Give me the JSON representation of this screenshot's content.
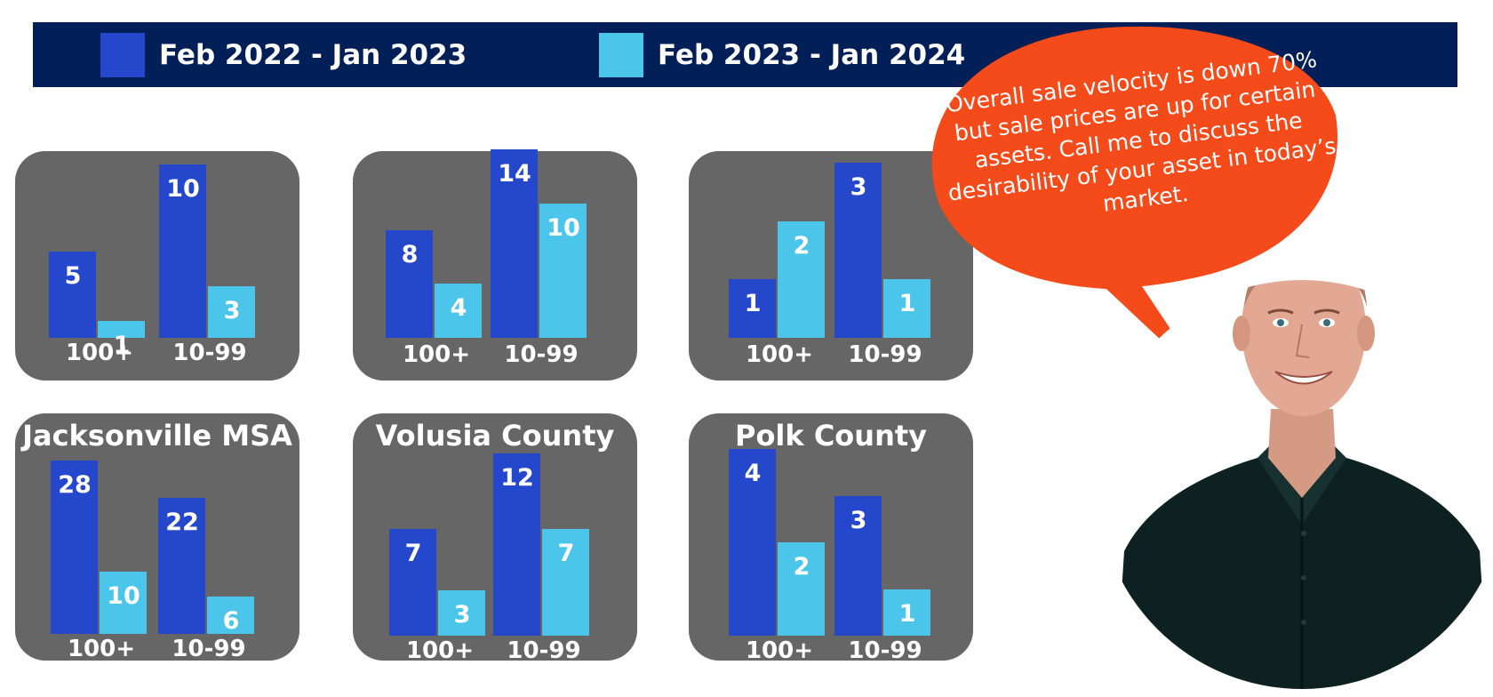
{
  "legend": {
    "series_a": {
      "label": "Feb 2022 - Jan 2023",
      "color": "#2547cc"
    },
    "series_b": {
      "label": "Feb 2023 - Jan 2024",
      "color": "#4cc5ea"
    }
  },
  "callout": {
    "text": "Overall sale velocity is down 70% but sale prices are up for certain assets.  Call me to discuss the desirability of your asset in today’s market.",
    "color": "#f54a1a"
  },
  "panel_color": "#666666",
  "chart_data": [
    {
      "type": "bar",
      "title": "",
      "categories": [
        "100+",
        "10-99"
      ],
      "series": [
        {
          "name": "Feb 2022 - Jan 2023",
          "values": [
            5,
            10
          ]
        },
        {
          "name": "Feb 2023 - Jan 2024",
          "values": [
            1,
            3
          ]
        }
      ],
      "ylim": [
        0,
        10
      ]
    },
    {
      "type": "bar",
      "title": "",
      "categories": [
        "100+",
        "10-99"
      ],
      "series": [
        {
          "name": "Feb 2022 - Jan 2023",
          "values": [
            8,
            14
          ]
        },
        {
          "name": "Feb 2023 - Jan 2024",
          "values": [
            4,
            10
          ]
        }
      ],
      "ylim": [
        0,
        14
      ]
    },
    {
      "type": "bar",
      "title": "",
      "categories": [
        "100+",
        "10-99"
      ],
      "series": [
        {
          "name": "Feb 2022 - Jan 2023",
          "values": [
            1,
            3
          ]
        },
        {
          "name": "Feb 2023 - Jan 2024",
          "values": [
            2,
            1
          ]
        }
      ],
      "ylim": [
        0,
        3
      ]
    },
    {
      "type": "bar",
      "title": "Jacksonville MSA",
      "categories": [
        "100+",
        "10-99"
      ],
      "series": [
        {
          "name": "Feb 2022 - Jan 2023",
          "values": [
            28,
            22
          ]
        },
        {
          "name": "Feb 2023 - Jan 2024",
          "values": [
            10,
            6
          ]
        }
      ],
      "ylim": [
        0,
        28
      ]
    },
    {
      "type": "bar",
      "title": "Volusia County",
      "categories": [
        "100+",
        "10-99"
      ],
      "series": [
        {
          "name": "Feb 2022 - Jan 2023",
          "values": [
            7,
            12
          ]
        },
        {
          "name": "Feb 2023 - Jan 2024",
          "values": [
            3,
            7
          ]
        }
      ],
      "ylim": [
        0,
        12
      ]
    },
    {
      "type": "bar",
      "title": "Polk County",
      "categories": [
        "100+",
        "10-99"
      ],
      "series": [
        {
          "name": "Feb 2022 - Jan 2023",
          "values": [
            4,
            3
          ]
        },
        {
          "name": "Feb 2023 - Jan 2024",
          "values": [
            2,
            1
          ]
        }
      ],
      "ylim": [
        0,
        4
      ]
    }
  ]
}
